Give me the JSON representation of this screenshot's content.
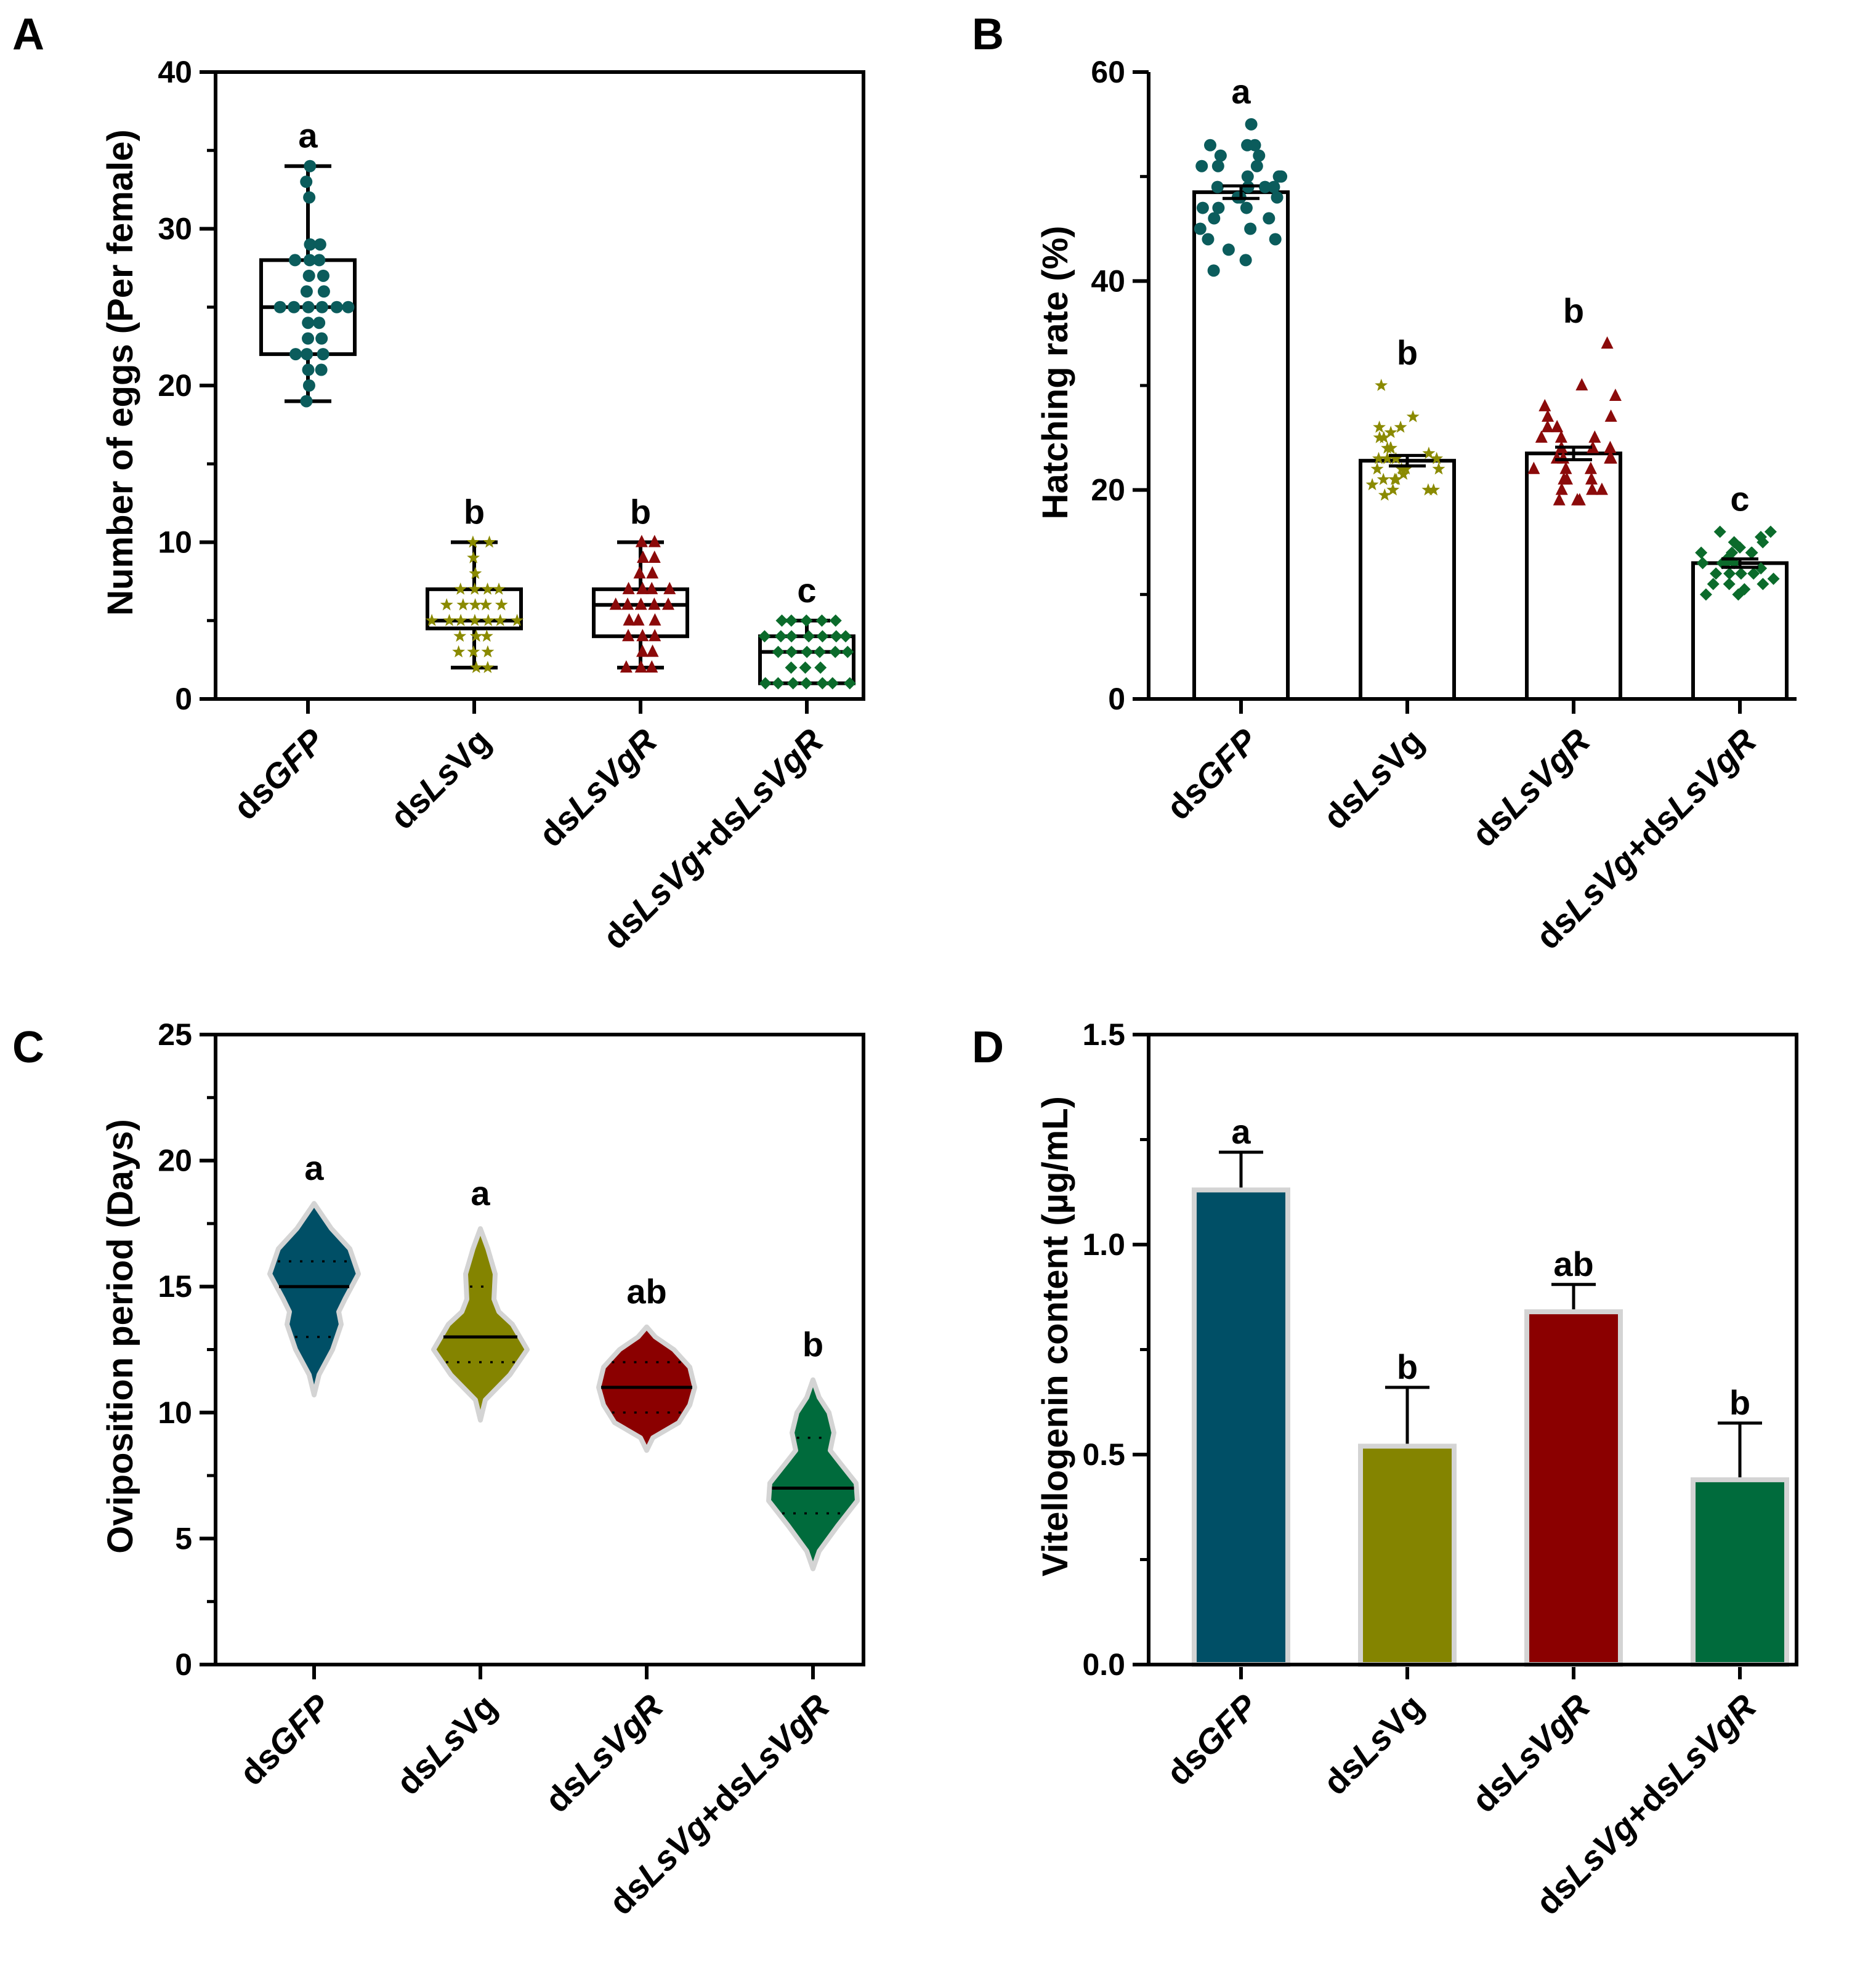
{
  "chart_data": [
    {
      "panel": "A",
      "type": "box",
      "ylabel": "Number of eggs (Per female)",
      "ylim": [
        0,
        40
      ],
      "yticks": [
        0,
        10,
        20,
        30,
        40
      ],
      "categories": [
        {
          "prefix": "ds",
          "italic": "GFP",
          "rest": ""
        },
        {
          "prefix": "ds",
          "italic": "Ls",
          "rest": "Vg"
        },
        {
          "prefix": "ds",
          "italic": "LsVgR",
          "rest": ""
        },
        {
          "prefix": "ds",
          "italic": "LsVg",
          "rest": "+ds",
          "italic2": "LsVgR"
        }
      ],
      "series": [
        {
          "name": "dsGFP",
          "color": "#0b5c5c",
          "marker": "circle",
          "min": 19,
          "q1": 22,
          "median": 25,
          "q3": 28,
          "max": 34,
          "letter": "a",
          "points": [
            19,
            20,
            21,
            21,
            22,
            22,
            22,
            23,
            23,
            24,
            24,
            25,
            25,
            25,
            25,
            25,
            25,
            26,
            26,
            27,
            27,
            28,
            28,
            28,
            29,
            29,
            32,
            33,
            34
          ]
        },
        {
          "name": "dsLsVg",
          "color": "#8a8a00",
          "marker": "star",
          "min": 2,
          "q1": 4.5,
          "median": 5,
          "q3": 7,
          "max": 10,
          "letter": "b",
          "points": [
            2,
            2,
            3,
            3,
            3,
            4,
            4,
            4,
            5,
            5,
            5,
            5,
            5,
            5,
            5,
            6,
            6,
            6,
            6,
            6,
            7,
            7,
            7,
            7,
            8,
            9,
            10,
            10
          ]
        },
        {
          "name": "dsLsVgR",
          "color": "#8b0a0a",
          "marker": "triangle",
          "min": 2,
          "q1": 4,
          "median": 6,
          "q3": 7,
          "max": 10,
          "letter": "b",
          "points": [
            2,
            2,
            2,
            3,
            3,
            4,
            4,
            4,
            5,
            5,
            5,
            6,
            6,
            6,
            6,
            6,
            7,
            7,
            7,
            7,
            8,
            8,
            9,
            9,
            10,
            10
          ]
        },
        {
          "name": "dsLsVg+dsLsVgR",
          "color": "#0b6b2b",
          "marker": "diamond",
          "min": 1,
          "q1": 1,
          "median": 3,
          "q3": 4,
          "max": 5,
          "letter": "c",
          "points": [
            1,
            1,
            1,
            1,
            1,
            1,
            1,
            2,
            2,
            2,
            3,
            3,
            3,
            3,
            3,
            3,
            4,
            4,
            4,
            4,
            4,
            4,
            4,
            5,
            5,
            5,
            5,
            5
          ]
        }
      ]
    },
    {
      "panel": "B",
      "type": "bar",
      "ylabel": "Hatching rate (%)",
      "ylim": [
        0,
        60
      ],
      "yticks": [
        0,
        20,
        40,
        60
      ],
      "categories": [
        {
          "prefix": "ds",
          "italic": "GFP",
          "rest": ""
        },
        {
          "prefix": "ds",
          "italic": "Ls",
          "rest": "Vg"
        },
        {
          "prefix": "ds",
          "italic": "LsVgR",
          "rest": ""
        },
        {
          "prefix": "ds",
          "italic": "LsVg",
          "rest": "+ds",
          "italic2": "LsVgR"
        }
      ],
      "series": [
        {
          "name": "dsGFP",
          "color": "#0b5c5c",
          "marker": "circle",
          "mean": 48.5,
          "sem": 0.6,
          "letter": "a",
          "points": [
            41,
            42,
            43,
            44,
            44,
            45,
            45,
            46,
            46,
            47,
            47,
            47,
            48,
            48,
            48,
            49,
            49,
            49,
            49,
            50,
            50,
            50,
            51,
            51,
            51,
            52,
            52,
            53,
            53,
            53,
            55
          ]
        },
        {
          "name": "dsLsVg",
          "color": "#8a8a00",
          "marker": "star",
          "mean": 22.8,
          "sem": 0.5,
          "letter": "b",
          "points": [
            19.5,
            20,
            20,
            20,
            20.5,
            21,
            21,
            21,
            21.5,
            22,
            22,
            22,
            22,
            23,
            23,
            23,
            23,
            23.5,
            24,
            24,
            24,
            25,
            25,
            25.5,
            26,
            26,
            27,
            30
          ]
        },
        {
          "name": "dsLsVgR",
          "color": "#8b0a0a",
          "marker": "triangle",
          "mean": 23.5,
          "sem": 0.6,
          "letter": "b",
          "points": [
            19,
            19,
            19,
            20,
            20,
            20,
            21,
            21,
            21,
            22,
            22,
            22,
            23,
            23,
            23,
            23,
            24,
            24,
            24,
            25,
            25,
            25,
            26,
            26,
            27,
            27,
            28,
            29,
            30,
            34
          ]
        },
        {
          "name": "dsLsVg+dsLsVgR",
          "color": "#0b6b2b",
          "marker": "diamond",
          "mean": 13,
          "sem": 0.4,
          "letter": "c",
          "points": [
            10,
            10,
            10.5,
            11,
            11,
            11,
            11.5,
            12,
            12,
            12,
            12,
            12.5,
            13,
            13,
            13,
            13,
            13.5,
            14,
            14,
            14,
            14,
            14.5,
            15,
            15,
            15.5,
            16,
            16
          ]
        }
      ]
    },
    {
      "panel": "C",
      "type": "violin",
      "ylabel": "Oviposition period (Days)",
      "ylim": [
        0,
        25
      ],
      "yticks": [
        0,
        5,
        10,
        15,
        20,
        25
      ],
      "categories": [
        {
          "prefix": "ds",
          "italic": "GFP",
          "rest": ""
        },
        {
          "prefix": "ds",
          "italic": "Ls",
          "rest": "Vg"
        },
        {
          "prefix": "ds",
          "italic": "LsVgR",
          "rest": ""
        },
        {
          "prefix": "ds",
          "italic": "LsVg",
          "rest": "+ds",
          "italic2": "LsVgR"
        }
      ],
      "series": [
        {
          "name": "dsGFP",
          "color": "#004f66",
          "median": 15,
          "q1": 13,
          "q3": 16,
          "ymin": 10.7,
          "ymax": 18.3,
          "letter": "a",
          "profile": [
            [
              10.7,
              0
            ],
            [
              11.5,
              8
            ],
            [
              12.5,
              30
            ],
            [
              13.5,
              44
            ],
            [
              14,
              40
            ],
            [
              14.5,
              50
            ],
            [
              15.5,
              72
            ],
            [
              16.5,
              58
            ],
            [
              17.3,
              28
            ],
            [
              18.3,
              0
            ]
          ]
        },
        {
          "name": "dsLsVg",
          "color": "#848400",
          "median": 13,
          "q1": 12,
          "q3": 15,
          "ymin": 9.7,
          "ymax": 17.3,
          "letter": "a",
          "profile": [
            [
              9.7,
              0
            ],
            [
              10.5,
              8
            ],
            [
              11.5,
              48
            ],
            [
              12.5,
              76
            ],
            [
              13.5,
              52
            ],
            [
              14,
              30
            ],
            [
              14.5,
              22
            ],
            [
              15.5,
              24
            ],
            [
              16.5,
              12
            ],
            [
              17.3,
              0
            ]
          ]
        },
        {
          "name": "dsLsVgR",
          "color": "#8b0000",
          "median": 11,
          "q1": 10,
          "q3": 12,
          "ymin": 8.5,
          "ymax": 13.4,
          "letter": "ab",
          "profile": [
            [
              8.5,
              0
            ],
            [
              9,
              10
            ],
            [
              9.6,
              52
            ],
            [
              10.3,
              70
            ],
            [
              11,
              78
            ],
            [
              11.8,
              70
            ],
            [
              12.5,
              44
            ],
            [
              13,
              14
            ],
            [
              13.4,
              0
            ]
          ]
        },
        {
          "name": "dsLsVg+dsLsVgR",
          "color": "#006b3c",
          "median": 7,
          "q1": 6,
          "q3": 9,
          "ymin": 3.8,
          "ymax": 11.3,
          "letter": "b",
          "profile": [
            [
              3.8,
              0
            ],
            [
              4.5,
              10
            ],
            [
              5.5,
              40
            ],
            [
              6.5,
              72
            ],
            [
              7.2,
              70
            ],
            [
              8,
              44
            ],
            [
              8.5,
              28
            ],
            [
              9.2,
              34
            ],
            [
              10,
              26
            ],
            [
              10.6,
              10
            ],
            [
              11.3,
              0
            ]
          ]
        }
      ]
    },
    {
      "panel": "D",
      "type": "bar",
      "ylabel": "Vitellogenin content (µg/mL)",
      "ylim": [
        0,
        1.5
      ],
      "yticks": [
        "0.0",
        "0.5",
        "1.0",
        "1.5"
      ],
      "categories": [
        {
          "prefix": "ds",
          "italic": "GFP",
          "rest": ""
        },
        {
          "prefix": "ds",
          "italic": "Ls",
          "rest": "Vg"
        },
        {
          "prefix": "ds",
          "italic": "LsVgR",
          "rest": ""
        },
        {
          "prefix": "ds",
          "italic": "LsVg",
          "rest": "+ds",
          "italic2": "LsVgR"
        }
      ],
      "series": [
        {
          "name": "dsGFP",
          "color": "#004f66",
          "mean": 1.13,
          "err": 0.09,
          "letter": "a"
        },
        {
          "name": "dsLsVg",
          "color": "#848400",
          "mean": 0.52,
          "err": 0.14,
          "letter": "b"
        },
        {
          "name": "dsLsVgR",
          "color": "#8b0000",
          "mean": 0.84,
          "err": 0.065,
          "letter": "ab"
        },
        {
          "name": "dsLsVg+dsLsVgR",
          "color": "#006b3c",
          "mean": 0.44,
          "err": 0.135,
          "letter": "b"
        }
      ]
    }
  ]
}
